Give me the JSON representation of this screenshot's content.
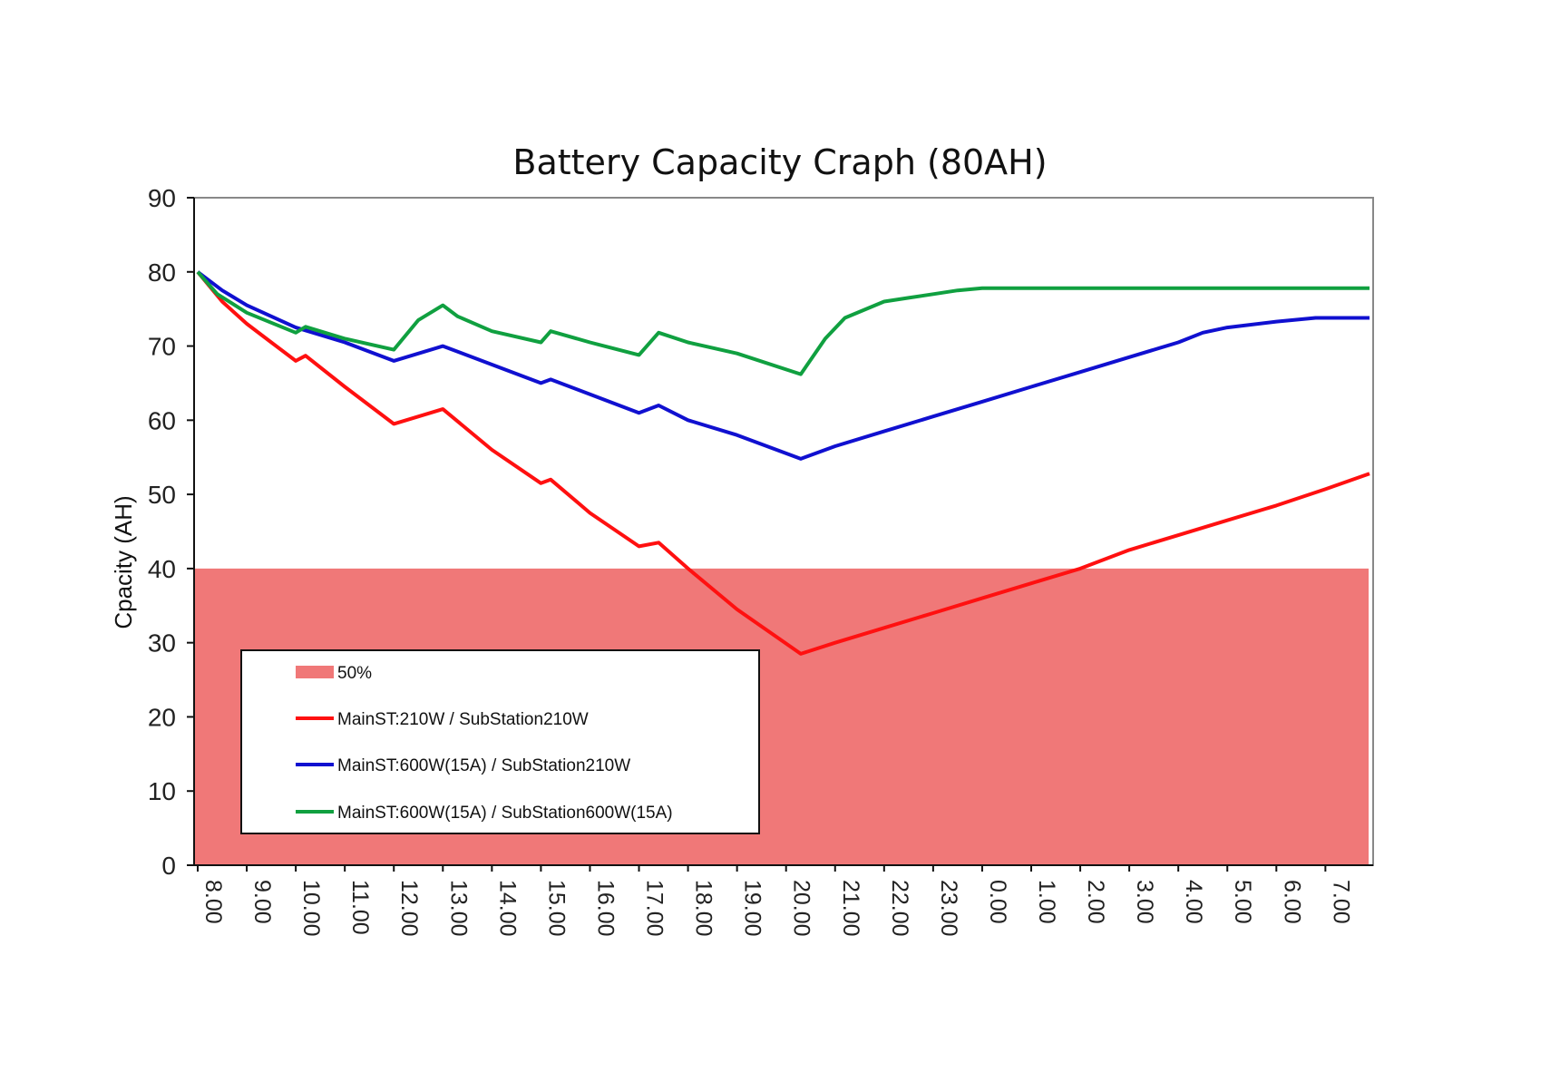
{
  "chart_data": {
    "type": "line",
    "title": "Battery Capacity Craph (80AH)",
    "ylabel": "Cpacity (AH)",
    "xlabel": "",
    "ylim": [
      0,
      90
    ],
    "yticks": [
      0,
      10,
      20,
      30,
      40,
      50,
      60,
      70,
      80,
      90
    ],
    "x_range": [
      0,
      23.9
    ],
    "x_tick_labels": [
      "8.00",
      "9.00",
      "10.00",
      "11.00",
      "12.00",
      "13.00",
      "14.00",
      "15.00",
      "16.00",
      "17.00",
      "18.00",
      "19.00",
      "20.00",
      "21.00",
      "22.00",
      "23.00",
      "0.00",
      "1.00",
      "2.00",
      "3.00",
      "4.00",
      "5.00",
      "6.00",
      "7.00"
    ],
    "x_tick_values": [
      0,
      1,
      2,
      3,
      4,
      5,
      6,
      7,
      8,
      9,
      10,
      11,
      12,
      13,
      14,
      15,
      16,
      17,
      18,
      19,
      20,
      21,
      22,
      23
    ],
    "grid": false,
    "threshold_band": {
      "name": "50%",
      "from": 0,
      "to": 40,
      "color": "#f07878"
    },
    "series": [
      {
        "name": "MainST:210W / SubStation210W",
        "color": "#ff1010",
        "x": [
          0,
          0.5,
          1,
          1.5,
          2,
          2.2,
          3,
          4,
          5,
          6,
          7,
          7.2,
          8,
          9,
          9.4,
          10,
          11,
          12.3,
          13,
          14,
          15,
          16,
          17,
          18,
          19,
          20,
          21,
          22,
          23,
          23.9
        ],
        "y": [
          80,
          76,
          73,
          70.5,
          68,
          68.7,
          64.5,
          59.5,
          61.5,
          56,
          51.5,
          52,
          47.5,
          43,
          43.5,
          40,
          34.5,
          28.5,
          30,
          32,
          34,
          36,
          38,
          40,
          42.5,
          44.5,
          46.5,
          48.5,
          50.7,
          52.8
        ]
      },
      {
        "name": "MainST:600W(15A) / SubStation210W",
        "color": "#1010d0",
        "x": [
          0,
          0.5,
          1,
          2,
          3,
          4,
          5,
          6,
          7,
          7.2,
          8,
          9,
          9.4,
          10,
          11,
          12.3,
          13,
          14,
          15,
          16,
          17,
          18,
          19,
          20,
          20.5,
          21,
          22,
          22.8,
          23.9
        ],
        "y": [
          80,
          77.5,
          75.5,
          72.5,
          70.5,
          68,
          70,
          67.5,
          65,
          65.5,
          63.5,
          61,
          62,
          60,
          58,
          54.8,
          56.5,
          58.5,
          60.5,
          62.5,
          64.5,
          66.5,
          68.5,
          70.5,
          71.8,
          72.5,
          73.3,
          73.8,
          73.8
        ]
      },
      {
        "name": "MainST:600W(15A) / SubStation600W(15A)",
        "color": "#10a040",
        "x": [
          0,
          0.4,
          1,
          2,
          2.2,
          3,
          4,
          4.5,
          5,
          5.3,
          6,
          7,
          7.2,
          8,
          9,
          9.4,
          10,
          11,
          12.3,
          12.8,
          13.2,
          14,
          14.5,
          15,
          15.5,
          16,
          17,
          18,
          20,
          22,
          23.9
        ],
        "y": [
          80,
          77,
          74.5,
          71.8,
          72.6,
          71,
          69.5,
          73.5,
          75.5,
          74,
          72,
          70.5,
          72,
          70.5,
          68.8,
          71.8,
          70.5,
          69,
          66.2,
          71,
          73.8,
          76,
          76.5,
          77,
          77.5,
          77.8,
          77.8,
          77.8,
          77.8,
          77.8,
          77.8
        ]
      }
    ],
    "legend_position": "bottom-left"
  }
}
